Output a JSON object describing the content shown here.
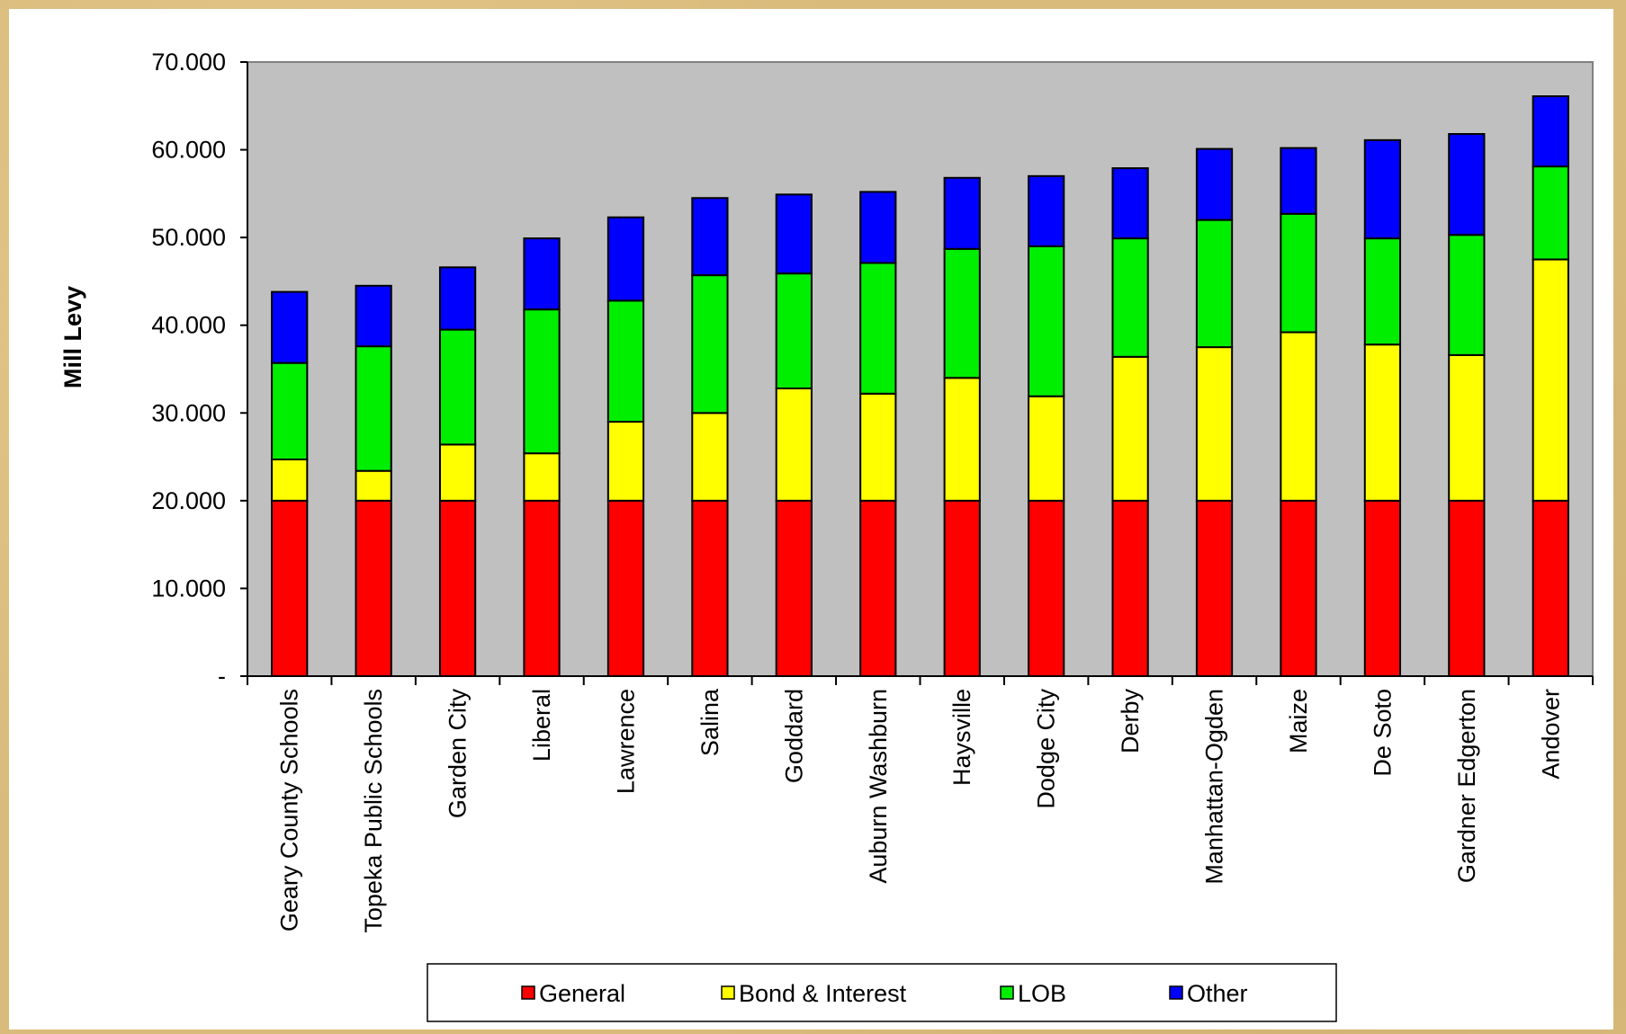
{
  "chart_data": {
    "type": "bar",
    "stacked": true,
    "title": "",
    "xlabel": "",
    "ylabel": "Mill Levy",
    "ylim": [
      0,
      70
    ],
    "ytick_labels": [
      "-",
      "10.000",
      "20.000",
      "30.000",
      "40.000",
      "50.000",
      "60.000",
      "70.000"
    ],
    "grid": false,
    "legend_position": "bottom",
    "plot_background": "#c0c0c0",
    "categories": [
      "Geary County Schools",
      "Topeka Public Schools",
      "Garden City",
      "Liberal",
      "Lawrence",
      "Salina",
      "Goddard",
      "Auburn Washburn",
      "Haysville",
      "Dodge City",
      "Derby",
      "Manhattan-Ogden",
      "Maize",
      "De Soto",
      "Gardner Edgerton",
      "Andover"
    ],
    "series": [
      {
        "name": "General",
        "color": "#ff0000",
        "values": [
          20,
          20,
          20,
          20,
          20,
          20,
          20,
          20,
          20,
          20,
          20,
          20,
          20,
          20,
          20,
          20
        ]
      },
      {
        "name": "Bond & Interest",
        "color": "#ffff00",
        "values": [
          4.7,
          3.4,
          6.4,
          5.4,
          9.0,
          10.0,
          12.8,
          12.2,
          14.0,
          11.9,
          16.4,
          17.5,
          19.2,
          17.8,
          16.6,
          27.5
        ]
      },
      {
        "name": "LOB",
        "color": "#00ee00",
        "values": [
          11.0,
          14.2,
          13.1,
          16.4,
          13.8,
          15.7,
          13.1,
          14.9,
          14.7,
          17.1,
          13.5,
          14.5,
          13.5,
          12.1,
          13.7,
          10.6
        ]
      },
      {
        "name": "Other",
        "color": "#0000ff",
        "values": [
          8.1,
          6.9,
          7.1,
          8.1,
          9.5,
          8.8,
          9.0,
          8.1,
          8.1,
          8.0,
          8.0,
          8.1,
          7.5,
          11.2,
          11.5,
          8.0
        ]
      }
    ]
  }
}
